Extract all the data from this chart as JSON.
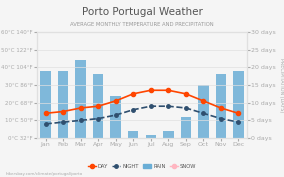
{
  "title": "Porto Portugal Weather",
  "subtitle": "AVERAGE MONTHLY TEMPERATURE AND PRECIPITATION",
  "months": [
    "Jan",
    "Feb",
    "Mar",
    "Apr",
    "May",
    "Jun",
    "Jul",
    "Aug",
    "Sep",
    "Oct",
    "Nov",
    "Dec"
  ],
  "day_temp": [
    14,
    15,
    17,
    18,
    21,
    25,
    27,
    27,
    25,
    21,
    17,
    14
  ],
  "night_temp": [
    8,
    9,
    10,
    11,
    13,
    16,
    18,
    18,
    17,
    14,
    11,
    9
  ],
  "rain_days": [
    19,
    19,
    22,
    18,
    12,
    2,
    1,
    2,
    6,
    15,
    18,
    19
  ],
  "snow_days": [
    0,
    0,
    0,
    0,
    0,
    0,
    0,
    0,
    0,
    0,
    0,
    0
  ],
  "bar_color": "#6aaed6",
  "day_color": "#ff4500",
  "night_color": "#2f4f6f",
  "snow_color": "#ffb6c1",
  "temp_left_labels": [
    "0°C 32°F",
    "10°C 50°F",
    "20°C 68°F",
    "30°C 86°F",
    "40°C 104°F",
    "50°C 122°F",
    "60°C 140°F"
  ],
  "temp_left_values": [
    0,
    10,
    20,
    30,
    40,
    50,
    60
  ],
  "precip_right_labels": [
    "0 days",
    "5 days",
    "10 days",
    "15 days",
    "20 days",
    "25 days",
    "30 days"
  ],
  "precip_right_values": [
    0,
    5,
    10,
    15,
    20,
    25,
    30
  ],
  "background_color": "#f5f5f5",
  "title_color": "#555555",
  "subtitle_color": "#999999",
  "axis_label_color": "#aaaaaa",
  "tick_color": "#aaaaaa",
  "grid_color": "#e0e0e0",
  "footer_text": "hikersbay.com/climate/portugal/porto"
}
